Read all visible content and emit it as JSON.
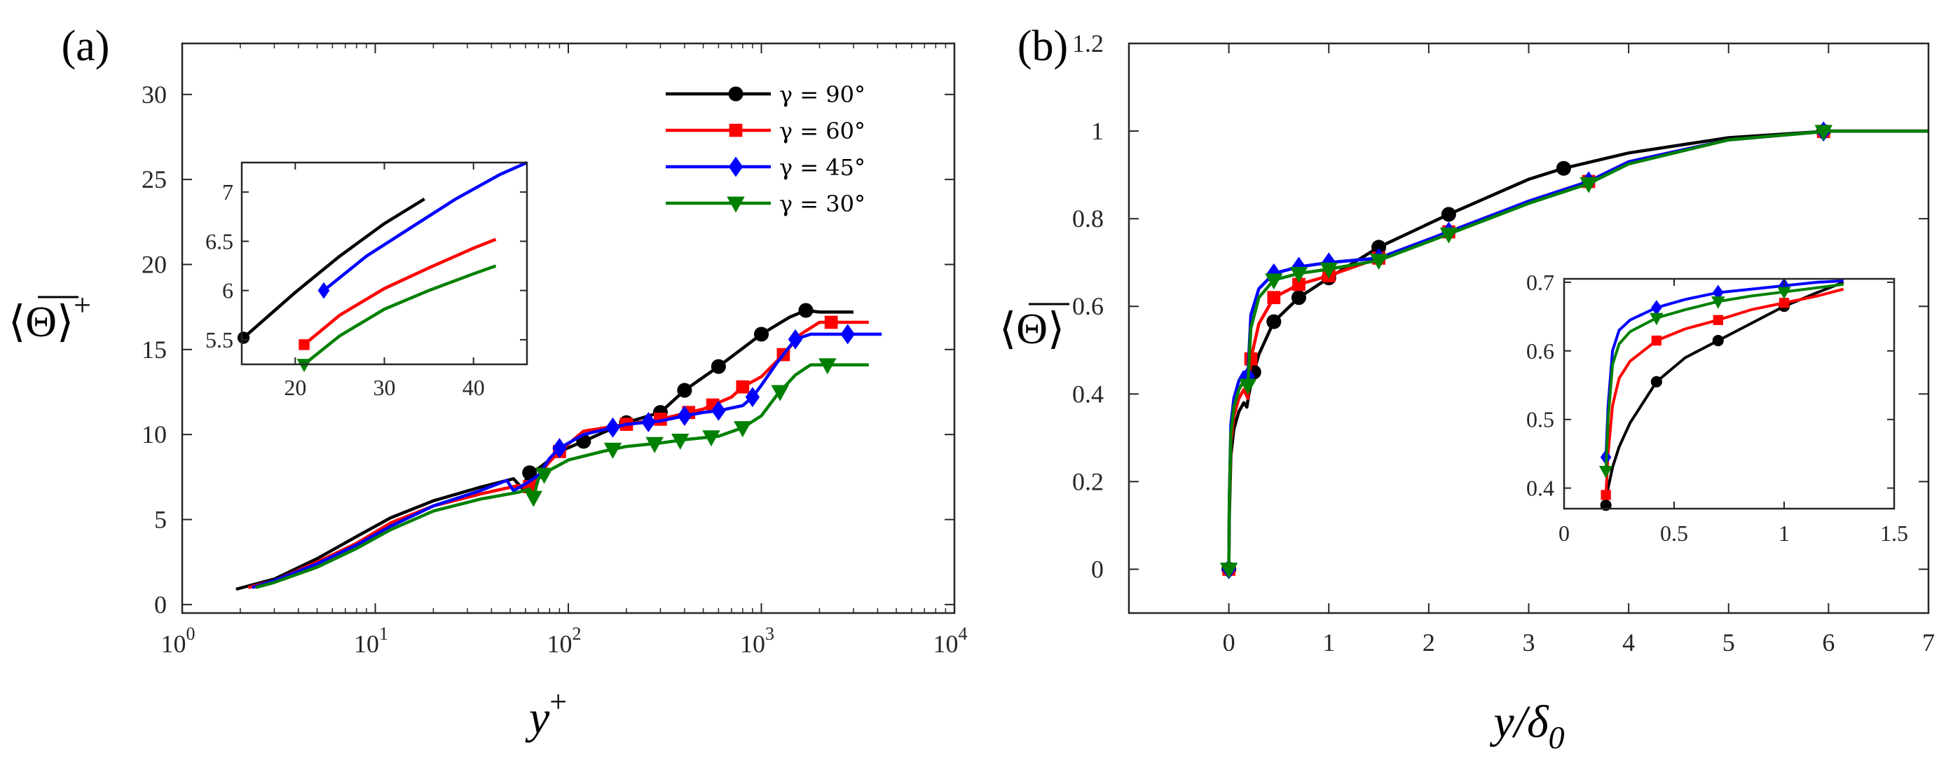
{
  "chart_data": [
    {
      "type": "line",
      "panel_label": "(a)",
      "xscale": "log",
      "xlim": [
        1,
        10000
      ],
      "ylim": [
        -0.5,
        33
      ],
      "xlabel": "y",
      "xlabel_sup": "+",
      "ylabel": "⟨Θ⟩",
      "ylabel_sup": "+",
      "xticks": [
        1,
        10,
        100,
        1000,
        10000
      ],
      "xtick_labels": [
        {
          "base": "10",
          "exp": "0"
        },
        {
          "base": "10",
          "exp": "1"
        },
        {
          "base": "10",
          "exp": "2"
        },
        {
          "base": "10",
          "exp": "3"
        },
        {
          "base": "10",
          "exp": "4"
        }
      ],
      "yticks": [
        0,
        5,
        10,
        15,
        20,
        25,
        30
      ],
      "ytick_labels": [
        "0",
        "5",
        "10",
        "15",
        "20",
        "25",
        "30"
      ],
      "legend": {
        "position": "top-right",
        "entries": [
          "γ = 90°",
          "γ = 60°",
          "γ = 45°",
          "γ = 30°"
        ]
      },
      "series": [
        {
          "name": "γ = 90°",
          "color": "#000000",
          "marker": "circle",
          "x": [
            1.9,
            3,
            5,
            8,
            12,
            20,
            35,
            52,
            58,
            62,
            66,
            70,
            80,
            90,
            120,
            150,
            200,
            300,
            400,
            600,
            1000,
            1400,
            1700,
            2000,
            2500,
            3000
          ],
          "y": [
            0.9,
            1.5,
            2.7,
            4.0,
            5.1,
            6.1,
            6.9,
            7.4,
            6.8,
            7.7,
            7.9,
            8.0,
            8.5,
            9.0,
            9.6,
            10.1,
            10.7,
            11.3,
            12.6,
            14.0,
            15.9,
            16.9,
            17.3,
            17.2,
            17.2,
            17.2
          ],
          "markers_at": [
            63,
            120,
            200,
            300,
            400,
            600,
            1000,
            1700
          ]
        },
        {
          "name": "γ = 60°",
          "color": "#ff0000",
          "marker": "square",
          "x": [
            2.2,
            3,
            5,
            8,
            12,
            20,
            35,
            55,
            62,
            65,
            70,
            80,
            90,
            120,
            200,
            300,
            500,
            700,
            800,
            1000,
            1300,
            1600,
            2000,
            2300,
            3000,
            3600
          ],
          "y": [
            1.0,
            1.4,
            2.5,
            3.6,
            4.8,
            5.8,
            6.5,
            7.0,
            6.8,
            7.2,
            7.6,
            8.4,
            9.0,
            10.2,
            10.6,
            10.9,
            11.5,
            12.2,
            12.8,
            13.4,
            14.7,
            15.9,
            16.6,
            16.6,
            16.6,
            16.6
          ],
          "markers_at": [
            63,
            90,
            200,
            300,
            420,
            560,
            800,
            1300,
            2300
          ]
        },
        {
          "name": "γ = 45°",
          "color": "#0000ff",
          "marker": "diamond",
          "x": [
            2.3,
            3,
            5,
            8,
            12,
            20,
            35,
            48,
            52,
            60,
            70,
            80,
            90,
            120,
            200,
            300,
            400,
            500,
            600,
            800,
            900,
            1000,
            1200,
            1500,
            1800,
            2200,
            3000,
            4200
          ],
          "y": [
            1.0,
            1.4,
            2.4,
            3.5,
            4.6,
            5.8,
            6.7,
            7.3,
            6.7,
            7.1,
            7.6,
            8.6,
            9.2,
            10.0,
            10.6,
            10.8,
            11.1,
            11.3,
            11.4,
            11.7,
            12.2,
            12.9,
            14.2,
            15.6,
            15.9,
            15.9,
            15.9,
            15.9
          ],
          "markers_at": [
            90,
            170,
            260,
            400,
            600,
            900,
            1500,
            2800
          ]
        },
        {
          "name": "γ = 30°",
          "color": "#008000",
          "marker": "triangle-down",
          "x": [
            2.4,
            3,
            5,
            8,
            12,
            20,
            35,
            55,
            63,
            66,
            70,
            80,
            100,
            150,
            200,
            300,
            400,
            600,
            800,
            1000,
            1200,
            1500,
            1800,
            2200,
            3000,
            3600
          ],
          "y": [
            1.0,
            1.3,
            2.2,
            3.3,
            4.4,
            5.5,
            6.2,
            6.6,
            6.8,
            6.3,
            7.4,
            7.9,
            8.5,
            9.0,
            9.3,
            9.5,
            9.7,
            9.9,
            10.4,
            11.1,
            12.3,
            13.5,
            14.1,
            14.1,
            14.1,
            14.1
          ],
          "markers_at": [
            66,
            75,
            170,
            280,
            380,
            550,
            800,
            1250,
            2200
          ]
        }
      ],
      "inset": {
        "xlim": [
          14,
          46
        ],
        "ylim": [
          5.25,
          7.3
        ],
        "xticks": [
          20,
          30,
          40
        ],
        "xtick_labels": [
          "20",
          "30",
          "40"
        ],
        "yticks": [
          5.5,
          6,
          6.5,
          7
        ],
        "ytick_labels": [
          "5.5",
          "6",
          "6.5",
          "7"
        ],
        "series": [
          {
            "name": "γ = 90°",
            "color": "#000000",
            "x": [
              14.2,
              20,
              25,
              30,
              34.5
            ],
            "y": [
              5.52,
              5.98,
              6.35,
              6.68,
              6.93
            ],
            "marker": "circle",
            "markers_at": [
              14.2
            ]
          },
          {
            "name": "γ = 60°",
            "color": "#ff0000",
            "x": [
              21,
              25,
              30,
              35,
              40,
              42.5
            ],
            "y": [
              5.45,
              5.75,
              6.02,
              6.23,
              6.43,
              6.52
            ],
            "marker": "square",
            "markers_at": [
              21
            ]
          },
          {
            "name": "γ = 45°",
            "color": "#0000ff",
            "x": [
              23.2,
              28,
              33,
              38,
              43,
              46
            ],
            "y": [
              6.0,
              6.35,
              6.64,
              6.93,
              7.18,
              7.3
            ],
            "marker": "diamond",
            "markers_at": [
              23.2
            ]
          },
          {
            "name": "γ = 30°",
            "color": "#008000",
            "x": [
              21,
              25,
              30,
              35,
              40,
              42.5
            ],
            "y": [
              5.25,
              5.54,
              5.81,
              6.0,
              6.17,
              6.25
            ],
            "marker": "triangle-down",
            "markers_at": [
              21
            ]
          }
        ]
      }
    },
    {
      "type": "line",
      "panel_label": "(b)",
      "xscale": "linear",
      "xlim": [
        -1,
        7
      ],
      "ylim": [
        -0.1,
        1.2
      ],
      "xlabel": "y/δ",
      "xlabel_sub": "0",
      "ylabel": "⟨Θ⟩",
      "xticks": [
        0,
        1,
        2,
        3,
        4,
        5,
        6,
        7
      ],
      "xtick_labels": [
        "0",
        "1",
        "2",
        "3",
        "4",
        "5",
        "6",
        "7"
      ],
      "yticks": [
        0,
        0.2,
        0.4,
        0.6,
        0.8,
        1.0,
        1.2
      ],
      "ytick_labels": [
        "0",
        "0.2",
        "0.4",
        "0.6",
        "0.8",
        "1",
        "1.2"
      ],
      "series": [
        {
          "name": "γ = 90°",
          "color": "#000000",
          "marker": "circle",
          "x": [
            0,
            0.005,
            0.02,
            0.05,
            0.1,
            0.15,
            0.18,
            0.2,
            0.25,
            0.3,
            0.45,
            0.7,
            1.0,
            1.5,
            2.2,
            3.0,
            3.35,
            4.0,
            5.0,
            6.0,
            7.0
          ],
          "y": [
            0,
            0.12,
            0.26,
            0.32,
            0.36,
            0.38,
            0.37,
            0.4,
            0.45,
            0.49,
            0.565,
            0.62,
            0.665,
            0.735,
            0.81,
            0.89,
            0.915,
            0.95,
            0.985,
            1.0,
            1.0
          ],
          "markers_at": [
            0,
            0.25,
            0.45,
            0.7,
            1.0,
            1.5,
            2.2,
            3.35,
            5.95
          ]
        },
        {
          "name": "γ = 60°",
          "color": "#ff0000",
          "marker": "square",
          "x": [
            0,
            0.005,
            0.02,
            0.05,
            0.1,
            0.15,
            0.19,
            0.22,
            0.3,
            0.45,
            0.7,
            1.0,
            1.5,
            2.2,
            3.0,
            3.6,
            4.0,
            5.0,
            6.0,
            7.0
          ],
          "y": [
            0,
            0.14,
            0.29,
            0.35,
            0.39,
            0.41,
            0.39,
            0.48,
            0.56,
            0.62,
            0.65,
            0.67,
            0.71,
            0.77,
            0.84,
            0.885,
            0.93,
            0.98,
            1.0,
            1.0
          ],
          "markers_at": [
            0,
            0.22,
            0.45,
            0.7,
            1.0,
            1.5,
            2.2,
            3.6,
            5.95
          ]
        },
        {
          "name": "γ = 45°",
          "color": "#0000ff",
          "marker": "diamond",
          "x": [
            0,
            0.005,
            0.02,
            0.05,
            0.1,
            0.15,
            0.19,
            0.22,
            0.3,
            0.45,
            0.7,
            1.0,
            1.5,
            2.2,
            3.0,
            3.6,
            4.0,
            5.0,
            6.0,
            7.0
          ],
          "y": [
            0,
            0.16,
            0.33,
            0.39,
            0.43,
            0.45,
            0.44,
            0.58,
            0.64,
            0.675,
            0.69,
            0.7,
            0.71,
            0.77,
            0.84,
            0.885,
            0.93,
            0.98,
            1.0,
            1.0
          ],
          "markers_at": [
            0,
            0.19,
            0.45,
            0.7,
            1.0,
            1.5,
            2.2,
            3.6,
            5.95
          ]
        },
        {
          "name": "γ = 30°",
          "color": "#008000",
          "marker": "triangle-down",
          "x": [
            0,
            0.005,
            0.02,
            0.05,
            0.1,
            0.15,
            0.19,
            0.22,
            0.3,
            0.45,
            0.7,
            1.0,
            1.5,
            2.2,
            3.0,
            3.6,
            4.0,
            5.0,
            6.0,
            7.0
          ],
          "y": [
            0,
            0.15,
            0.31,
            0.37,
            0.41,
            0.43,
            0.42,
            0.55,
            0.62,
            0.66,
            0.675,
            0.685,
            0.705,
            0.765,
            0.835,
            0.88,
            0.925,
            0.98,
            1.0,
            1.0
          ],
          "markers_at": [
            0,
            0.19,
            0.45,
            0.7,
            1.0,
            1.5,
            2.2,
            3.6,
            5.95
          ]
        }
      ],
      "inset": {
        "xlim": [
          0,
          1.5
        ],
        "ylim": [
          0.37,
          0.705
        ],
        "xticks": [
          0,
          0.5,
          1,
          1.5
        ],
        "xtick_labels": [
          "0",
          "0.5",
          "1",
          "1.5"
        ],
        "yticks": [
          0.4,
          0.5,
          0.6,
          0.7
        ],
        "ytick_labels": [
          "0.4",
          "0.5",
          "0.6",
          "0.7"
        ],
        "series": [
          {
            "name": "γ = 90°",
            "color": "#000000",
            "marker": "circle",
            "x": [
              0.19,
              0.2,
              0.22,
              0.25,
              0.3,
              0.42,
              0.55,
              0.7,
              0.85,
              1.0,
              1.15,
              1.27
            ],
            "y": [
              0.375,
              0.4,
              0.43,
              0.46,
              0.495,
              0.555,
              0.59,
              0.615,
              0.64,
              0.665,
              0.685,
              0.7
            ],
            "markers_at": [
              0.19,
              0.42,
              0.7,
              1.0
            ]
          },
          {
            "name": "γ = 60°",
            "color": "#ff0000",
            "marker": "square",
            "x": [
              0.19,
              0.2,
              0.22,
              0.25,
              0.3,
              0.42,
              0.55,
              0.7,
              0.85,
              1.0,
              1.15,
              1.27
            ],
            "y": [
              0.39,
              0.45,
              0.52,
              0.56,
              0.585,
              0.615,
              0.632,
              0.645,
              0.66,
              0.67,
              0.68,
              0.69
            ],
            "markers_at": [
              0.19,
              0.42,
              0.7,
              1.0
            ]
          },
          {
            "name": "γ = 45°",
            "color": "#0000ff",
            "marker": "diamond",
            "x": [
              0.19,
              0.2,
              0.22,
              0.25,
              0.3,
              0.42,
              0.55,
              0.7,
              0.85,
              1.0,
              1.15,
              1.27
            ],
            "y": [
              0.445,
              0.52,
              0.6,
              0.63,
              0.645,
              0.663,
              0.675,
              0.685,
              0.69,
              0.695,
              0.7,
              0.702
            ],
            "markers_at": [
              0.19,
              0.42,
              0.7,
              1.0
            ]
          },
          {
            "name": "γ = 30°",
            "color": "#008000",
            "marker": "triangle-down",
            "x": [
              0.19,
              0.2,
              0.22,
              0.25,
              0.3,
              0.42,
              0.55,
              0.7,
              0.85,
              1.0,
              1.15,
              1.27
            ],
            "y": [
              0.425,
              0.5,
              0.58,
              0.61,
              0.628,
              0.648,
              0.66,
              0.672,
              0.68,
              0.686,
              0.692,
              0.697
            ],
            "markers_at": [
              0.19,
              0.42,
              0.7,
              1.0
            ]
          }
        ]
      }
    }
  ]
}
